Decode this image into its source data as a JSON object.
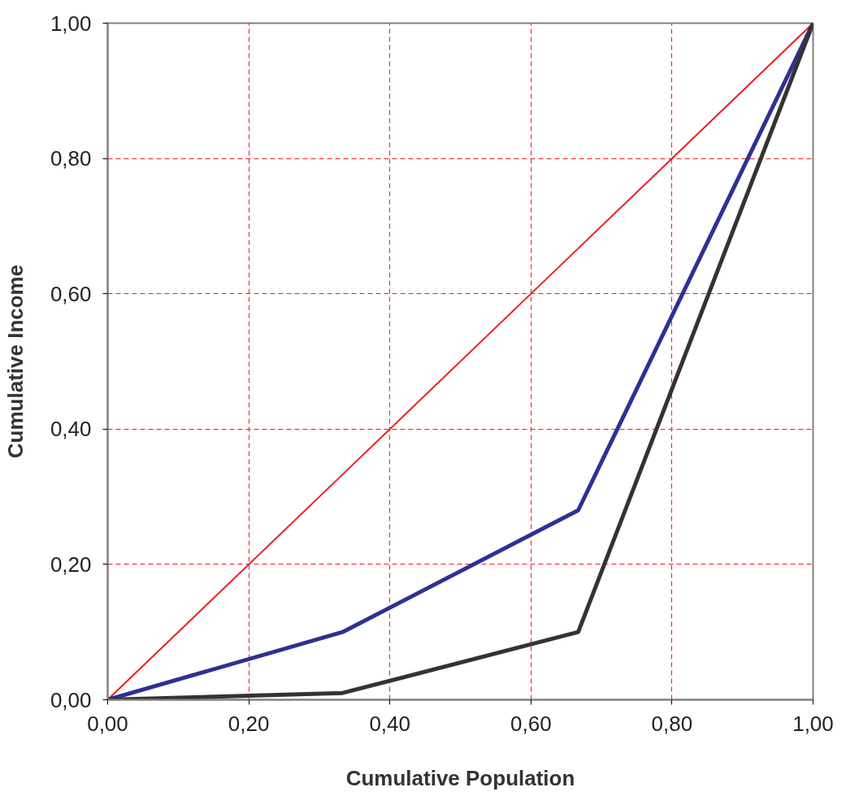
{
  "chart_data": {
    "type": "line",
    "xlabel": "Cumulative Population",
    "ylabel": "Cumulative Income",
    "x": [
      0,
      0.333,
      0.667,
      1
    ],
    "series": [
      {
        "color": "#ee1c25",
        "values": [
          0,
          0.333,
          0.667,
          1
        ]
      },
      {
        "color": "#2e3192",
        "values": [
          0,
          0.1,
          0.28,
          1
        ]
      },
      {
        "color": "#333333",
        "values": [
          0,
          0.01,
          0.1,
          1
        ]
      }
    ],
    "xlim": [
      0,
      1
    ],
    "ylim": [
      0,
      1
    ],
    "xticks": [
      {
        "value": 0,
        "label": "0,00"
      },
      {
        "value": 0.2,
        "label": "0,20"
      },
      {
        "value": 0.4,
        "label": "0,40"
      },
      {
        "value": 0.6,
        "label": "0,60"
      },
      {
        "value": 0.8,
        "label": "0,80"
      },
      {
        "value": 1,
        "label": "1,00"
      }
    ],
    "yticks": [
      {
        "value": 0,
        "label": "0,00"
      },
      {
        "value": 0.2,
        "label": "0,20"
      },
      {
        "value": 0.4,
        "label": "0,40"
      },
      {
        "value": 0.6,
        "label": "0,60"
      },
      {
        "value": 0.8,
        "label": "0,80"
      },
      {
        "value": 1,
        "label": "1,00"
      }
    ],
    "grid": true,
    "line_style": "solid",
    "marker": "none"
  }
}
